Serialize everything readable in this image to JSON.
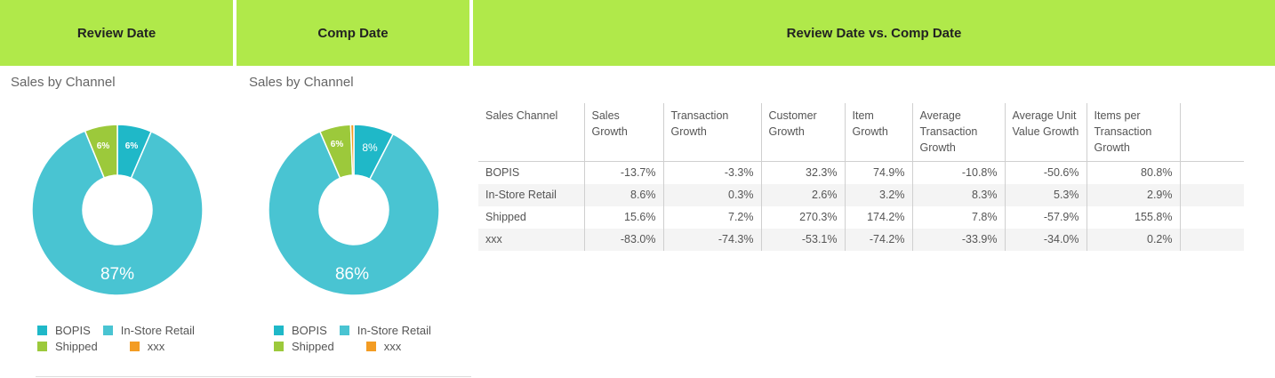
{
  "headers": {
    "review": "Review Date",
    "comp": "Comp Date",
    "vs": "Review Date vs. Comp Date"
  },
  "review_panel": {
    "title": "Sales by Channel",
    "labels": {
      "bopis": "6%",
      "shipped": "6%",
      "instore": "87%"
    }
  },
  "comp_panel": {
    "title": "Sales by Channel",
    "labels": {
      "bopis": "8%",
      "shipped": "6%",
      "instore": "86%"
    }
  },
  "legend": [
    "BOPIS",
    "In-Store Retail",
    "Shipped",
    "xxx"
  ],
  "colors": {
    "bopis": "#1fb8c8",
    "instore": "#49c4d2",
    "shipped": "#9cc93b",
    "xxx": "#f39c23",
    "header_bg": "#b0e94a"
  },
  "chart_data": [
    {
      "type": "pie",
      "title": "Sales by Channel",
      "categories": [
        "BOPIS",
        "In-Store Retail",
        "Shipped",
        "xxx"
      ],
      "values": [
        6.5,
        87.3,
        6.2,
        0
      ]
    },
    {
      "type": "pie",
      "title": "Sales by Channel",
      "categories": [
        "BOPIS",
        "In-Store Retail",
        "Shipped",
        "xxx"
      ],
      "values": [
        7.6,
        85.9,
        5.9,
        0.6
      ]
    }
  ],
  "table": {
    "columns": [
      "Sales Channel",
      "Sales Growth",
      "Transaction Growth",
      "Customer Growth",
      "Item Growth",
      "Average Transaction Growth",
      "Average Unit Value Growth",
      "Items per Transaction Growth"
    ],
    "rows": [
      [
        "BOPIS",
        "-13.7%",
        "-3.3%",
        "32.3%",
        "74.9%",
        "-10.8%",
        "-50.6%",
        "80.8%"
      ],
      [
        "In-Store Retail",
        "8.6%",
        "0.3%",
        "2.6%",
        "3.2%",
        "8.3%",
        "5.3%",
        "2.9%"
      ],
      [
        "Shipped",
        "15.6%",
        "7.2%",
        "270.3%",
        "174.2%",
        "7.8%",
        "-57.9%",
        "155.8%"
      ],
      [
        "xxx",
        "-83.0%",
        "-74.3%",
        "-53.1%",
        "-74.2%",
        "-33.9%",
        "-34.0%",
        "0.2%"
      ]
    ]
  }
}
